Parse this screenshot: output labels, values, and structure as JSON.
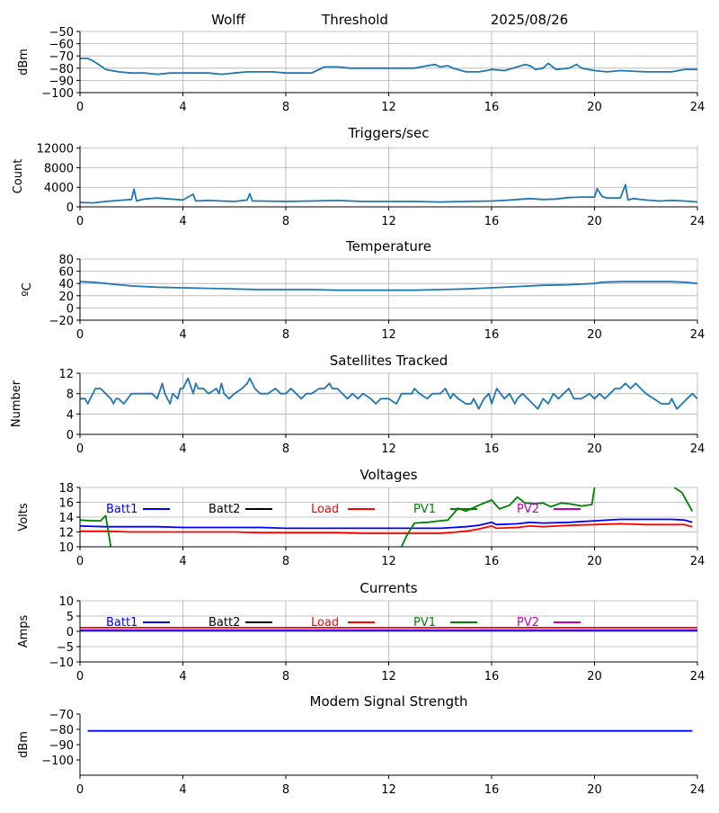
{
  "header": {
    "station": "Wolff",
    "mode": "Threshold",
    "date": "2025/08/26"
  },
  "x_ticks": [
    0,
    4,
    8,
    12,
    16,
    20,
    24
  ],
  "chart_data": [
    {
      "id": "rssi",
      "type": "line",
      "title": "",
      "xlabel": "",
      "ylabel": "dBm",
      "xlim": [
        0,
        24
      ],
      "ylim": [
        -100,
        -50
      ],
      "yticks": [
        -50,
        -60,
        -70,
        -80,
        -90,
        -100
      ],
      "ytick_labels": [
        "−50",
        "−60",
        "−70",
        "−80",
        "−90",
        "−100"
      ],
      "grid": true,
      "series": [
        {
          "color": "#1f77b4",
          "x": [
            0,
            0.3,
            0.5,
            0.8,
            1,
            1.5,
            2,
            2.5,
            3,
            3.5,
            4,
            5,
            5.5,
            6,
            6.5,
            7,
            7.5,
            8,
            8.5,
            9,
            9.2,
            9.5,
            10,
            10.5,
            11,
            12,
            13,
            13.5,
            13.8,
            14,
            14.3,
            14.5,
            15,
            15.5,
            15.8,
            16,
            16.5,
            17,
            17.3,
            17.5,
            17.7,
            18,
            18.2,
            18.5,
            19,
            19.3,
            19.5,
            20,
            20.5,
            21,
            22,
            23,
            23.5,
            24
          ],
          "y": [
            -72,
            -72,
            -74,
            -78,
            -81,
            -83,
            -84,
            -84,
            -85,
            -84,
            -84,
            -84,
            -85,
            -84,
            -83,
            -83,
            -83,
            -84,
            -84,
            -84,
            -82,
            -79,
            -79,
            -80,
            -80,
            -80,
            -80,
            -78,
            -77,
            -79,
            -78,
            -80,
            -83,
            -83,
            -82,
            -81,
            -82,
            -79,
            -77,
            -78,
            -81,
            -80,
            -76,
            -81,
            -80,
            -77,
            -80,
            -82,
            -83,
            -82,
            -83,
            -83,
            -81,
            -81
          ]
        }
      ]
    },
    {
      "id": "triggers",
      "type": "line",
      "title": "Triggers/sec",
      "xlabel": "",
      "ylabel": "Count",
      "xlim": [
        0,
        24
      ],
      "ylim": [
        0,
        12500
      ],
      "yticks": [
        0,
        4000,
        8000,
        12000
      ],
      "ytick_labels": [
        "0",
        "4000",
        "8000",
        "12000"
      ],
      "grid": true,
      "series": [
        {
          "color": "#1f77b4",
          "x": [
            0,
            0.5,
            1,
            1.5,
            2,
            2.1,
            2.2,
            2.5,
            3,
            3.5,
            4,
            4.4,
            4.5,
            5,
            5.5,
            6,
            6.5,
            6.6,
            6.7,
            7,
            8,
            9,
            10,
            11,
            12,
            13,
            14,
            15,
            16,
            16.5,
            17,
            17.5,
            18,
            18.5,
            19,
            19.5,
            20,
            20.1,
            20.3,
            20.5,
            21,
            21.2,
            21.3,
            21.5,
            22,
            22.5,
            23,
            23.5,
            24
          ],
          "y": [
            900,
            800,
            1100,
            1300,
            1500,
            3600,
            1200,
            1600,
            1800,
            1600,
            1400,
            2600,
            1200,
            1300,
            1200,
            1100,
            1400,
            2700,
            1200,
            1200,
            1100,
            1200,
            1300,
            1100,
            1100,
            1100,
            1000,
            1100,
            1200,
            1300,
            1500,
            1700,
            1500,
            1600,
            1900,
            2000,
            2000,
            3700,
            2100,
            1800,
            1800,
            4500,
            1400,
            1700,
            1400,
            1200,
            1300,
            1200,
            1000
          ]
        }
      ]
    },
    {
      "id": "temperature",
      "type": "line",
      "title": "Temperature",
      "xlabel": "",
      "ylabel": "ºC",
      "xlim": [
        0,
        24
      ],
      "ylim": [
        -20,
        80
      ],
      "yticks": [
        -20,
        0,
        20,
        40,
        60,
        80
      ],
      "ytick_labels": [
        "−20",
        "0",
        "20",
        "40",
        "60",
        "80"
      ],
      "grid": true,
      "series": [
        {
          "color": "#1f77b4",
          "x": [
            0,
            0.5,
            1,
            1.5,
            2,
            2.5,
            3,
            4,
            5,
            6,
            7,
            8,
            9,
            10,
            11,
            12,
            13,
            14,
            15,
            16,
            17,
            18,
            19,
            20,
            20.3,
            21,
            22,
            23,
            23.5,
            24
          ],
          "y": [
            43,
            42,
            40,
            38,
            36,
            35,
            34,
            33,
            32,
            31,
            30,
            30,
            30,
            29,
            29,
            29,
            29,
            30,
            31,
            33,
            35,
            37,
            38,
            40,
            42,
            43,
            43,
            43,
            42,
            40
          ]
        }
      ]
    },
    {
      "id": "satellites",
      "type": "line",
      "title": "Satellites Tracked",
      "xlabel": "",
      "ylabel": "Number",
      "xlim": [
        0,
        24
      ],
      "ylim": [
        0,
        12
      ],
      "yticks": [
        0,
        4,
        8,
        12
      ],
      "ytick_labels": [
        "0",
        "4",
        "8",
        "12"
      ],
      "grid": true,
      "series": [
        {
          "color": "#1f77b4",
          "x": [
            0,
            0.2,
            0.3,
            0.5,
            0.6,
            0.8,
            1,
            1.2,
            1.3,
            1.4,
            1.5,
            1.7,
            2,
            2.3,
            2.8,
            3,
            3.2,
            3.3,
            3.4,
            3.5,
            3.6,
            3.8,
            3.9,
            4,
            4.2,
            4.4,
            4.5,
            4.6,
            4.8,
            5,
            5.3,
            5.4,
            5.5,
            5.6,
            5.8,
            6,
            6.3,
            6.5,
            6.6,
            6.8,
            7,
            7.3,
            7.6,
            7.8,
            8,
            8.2,
            8.4,
            8.6,
            8.8,
            9,
            9.3,
            9.5,
            9.7,
            9.8,
            10,
            10.2,
            10.4,
            10.6,
            10.8,
            11,
            11.3,
            11.5,
            11.7,
            12,
            12.3,
            12.5,
            12.7,
            12.9,
            13,
            13.2,
            13.5,
            13.7,
            14,
            14.2,
            14.4,
            14.5,
            14.7,
            15,
            15.2,
            15.3,
            15.5,
            15.7,
            15.9,
            16,
            16.2,
            16.5,
            16.7,
            16.9,
            17,
            17.2,
            17.4,
            17.6,
            17.8,
            18,
            18.2,
            18.4,
            18.6,
            18.8,
            19,
            19.2,
            19.5,
            19.8,
            20,
            20.2,
            20.4,
            20.6,
            20.8,
            21,
            21.2,
            21.4,
            21.6,
            21.8,
            22,
            22.3,
            22.6,
            22.9,
            23,
            23.2,
            23.4,
            23.6,
            23.8,
            24
          ],
          "y": [
            7,
            7,
            6,
            8,
            9,
            9,
            8,
            7,
            6,
            7,
            7,
            6,
            8,
            8,
            8,
            7,
            10,
            8,
            7,
            6,
            8,
            7,
            9,
            9,
            11,
            8,
            10,
            9,
            9,
            8,
            9,
            8,
            10,
            8,
            7,
            8,
            9,
            10,
            11,
            9,
            8,
            8,
            9,
            8,
            8,
            9,
            8,
            7,
            8,
            8,
            9,
            9,
            10,
            9,
            9,
            8,
            7,
            8,
            7,
            8,
            7,
            6,
            7,
            7,
            6,
            8,
            8,
            8,
            9,
            8,
            7,
            8,
            8,
            9,
            7,
            8,
            7,
            6,
            6,
            7,
            5,
            7,
            8,
            6,
            9,
            7,
            8,
            6,
            7,
            8,
            7,
            6,
            5,
            7,
            6,
            8,
            7,
            8,
            9,
            7,
            7,
            8,
            7,
            8,
            7,
            8,
            9,
            9,
            10,
            9,
            10,
            9,
            8,
            7,
            6,
            6,
            7,
            5,
            6,
            7,
            8,
            7
          ]
        }
      ]
    },
    {
      "id": "voltages",
      "type": "line",
      "title": "Voltages",
      "xlabel": "",
      "ylabel": "Volts",
      "xlim": [
        0,
        24
      ],
      "ylim": [
        10,
        18
      ],
      "yticks": [
        10,
        12,
        14,
        16,
        18
      ],
      "ytick_labels": [
        "10",
        "12",
        "14",
        "16",
        "18"
      ],
      "grid": true,
      "legend": [
        {
          "label": "Batt1",
          "color": "#0000ff"
        },
        {
          "label": "Batt2",
          "color": "#000000"
        },
        {
          "label": "Load",
          "color": "#ff0000"
        },
        {
          "label": "PV1",
          "color": "#008000"
        },
        {
          "label": "PV2",
          "color": "#bf00bf"
        }
      ],
      "series": [
        {
          "color": "#0000ff",
          "x": [
            0,
            1,
            2,
            3,
            4,
            5,
            6,
            7,
            8,
            9,
            10,
            11,
            12,
            13,
            14,
            15,
            15.5,
            16,
            16.2,
            17,
            17.5,
            18,
            19,
            20,
            21,
            22,
            23,
            23.5,
            23.8
          ],
          "y": [
            12.8,
            12.7,
            12.7,
            12.7,
            12.6,
            12.6,
            12.6,
            12.6,
            12.5,
            12.5,
            12.5,
            12.5,
            12.5,
            12.5,
            12.5,
            12.7,
            12.9,
            13.3,
            13.0,
            13.1,
            13.3,
            13.2,
            13.3,
            13.5,
            13.7,
            13.7,
            13.7,
            13.6,
            13.3
          ]
        },
        {
          "color": "#ff0000",
          "x": [
            0,
            1,
            2,
            3,
            4,
            5,
            6,
            7,
            8,
            9,
            10,
            11,
            12,
            13,
            14,
            15,
            15.5,
            16,
            16.2,
            17,
            17.5,
            18,
            19,
            20,
            21,
            22,
            23,
            23.5,
            23.8
          ],
          "y": [
            12.1,
            12.1,
            12.0,
            12.0,
            12.0,
            12.0,
            12.0,
            11.9,
            11.9,
            11.9,
            11.9,
            11.8,
            11.8,
            11.8,
            11.8,
            12.1,
            12.4,
            12.8,
            12.5,
            12.6,
            12.8,
            12.7,
            12.9,
            13.0,
            13.1,
            13.0,
            13.0,
            13.0,
            12.7
          ]
        },
        {
          "color": "#008000",
          "x": [
            0,
            0.5,
            0.8,
            1,
            1.2
          ],
          "y": [
            13.6,
            13.5,
            13.5,
            14.2,
            10.0
          ]
        },
        {
          "color": "#008000",
          "x": [
            12.5,
            12.7,
            13,
            13.5,
            14,
            14.3,
            14.7,
            15,
            15.5,
            16,
            16.3,
            16.7,
            17,
            17.3,
            17.7,
            18,
            18.3,
            18.7,
            19,
            19.5,
            19.9,
            20
          ],
          "y": [
            10.0,
            11.5,
            13.2,
            13.3,
            13.5,
            13.6,
            15.2,
            14.8,
            15.6,
            16.3,
            15.1,
            15.6,
            16.7,
            15.9,
            15.8,
            15.9,
            15.4,
            15.9,
            15.8,
            15.5,
            15.7,
            18.0
          ]
        },
        {
          "color": "#008000",
          "x": [
            23.1,
            23.4,
            23.8
          ],
          "y": [
            18.0,
            17.3,
            14.8
          ]
        }
      ]
    },
    {
      "id": "currents",
      "type": "line",
      "title": "Currents",
      "xlabel": "",
      "ylabel": "Amps",
      "xlim": [
        0,
        24
      ],
      "ylim": [
        -10,
        10
      ],
      "yticks": [
        -10,
        -5,
        0,
        5,
        10
      ],
      "ytick_labels": [
        "−10",
        "−5",
        "0",
        "5",
        "10"
      ],
      "grid": true,
      "legend": [
        {
          "label": "Batt1",
          "color": "#0000ff"
        },
        {
          "label": "Batt2",
          "color": "#000000"
        },
        {
          "label": "Load",
          "color": "#ff0000"
        },
        {
          "label": "PV1",
          "color": "#008000"
        },
        {
          "label": "PV2",
          "color": "#bf00bf"
        }
      ],
      "series": [
        {
          "color": "#ff0000",
          "x": [
            0,
            24
          ],
          "y": [
            1.2,
            1.2
          ]
        },
        {
          "color": "#bf00bf",
          "x": [
            0,
            24
          ],
          "y": [
            0.4,
            0.4
          ]
        },
        {
          "color": "#0000ff",
          "x": [
            0,
            24
          ],
          "y": [
            0.2,
            0.2
          ]
        }
      ]
    },
    {
      "id": "modem",
      "type": "line",
      "title": "Modem Signal Strength",
      "xlabel": "",
      "ylabel": "dBm",
      "xlim": [
        0,
        24
      ],
      "ylim": [
        -110,
        -70
      ],
      "yticks": [
        -70,
        -80,
        -90,
        -100
      ],
      "ytick_labels": [
        "−70",
        "−80",
        "−90",
        "−100"
      ],
      "grid": false,
      "series": [
        {
          "color": "#0000ff",
          "x": [
            0.3,
            23.8
          ],
          "y": [
            -81,
            -81
          ]
        }
      ]
    }
  ]
}
